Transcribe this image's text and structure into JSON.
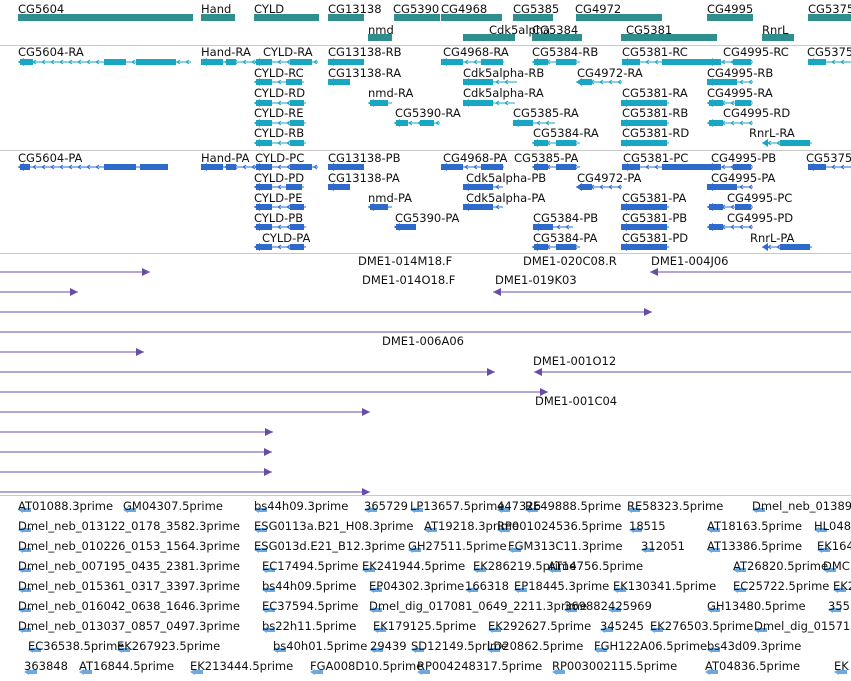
{
  "genes": [
    {
      "label": "CG5604"
    },
    {
      "label": "Hand"
    },
    {
      "label": "CYLD"
    },
    {
      "label": "CG13138"
    },
    {
      "label": "CG5390"
    },
    {
      "label": "CG4968"
    },
    {
      "label": "CG5385"
    },
    {
      "label": "CG4972"
    },
    {
      "label": "CG4995"
    },
    {
      "label": "CG5375"
    },
    {
      "label": "nmd"
    },
    {
      "label": "Cdk5alpha"
    },
    {
      "label": "CG5384"
    },
    {
      "label": "CG5381"
    },
    {
      "label": "RnrL"
    }
  ],
  "transcripts": [
    {
      "label": "CG5604-RA"
    },
    {
      "label": "Hand-RA"
    },
    {
      "label": "CYLD-RA"
    },
    {
      "label": "CG13138-RB"
    },
    {
      "label": "CG4968-RA"
    },
    {
      "label": "CG5384-RB"
    },
    {
      "label": "CG5381-RC"
    },
    {
      "label": "CG4995-RC"
    },
    {
      "label": "CG5375"
    },
    {
      "label": "CYLD-RC"
    },
    {
      "label": "CG13138-RA"
    },
    {
      "label": "Cdk5alpha-RB"
    },
    {
      "label": "CG4972-RA"
    },
    {
      "label": "CG4995-RB"
    },
    {
      "label": "CYLD-RD"
    },
    {
      "label": "nmd-RA"
    },
    {
      "label": "Cdk5alpha-RA"
    },
    {
      "label": "CG5381-RA"
    },
    {
      "label": "CG4995-RA"
    },
    {
      "label": "CYLD-RE"
    },
    {
      "label": "CG5390-RA"
    },
    {
      "label": "CG5385-RA"
    },
    {
      "label": "CG5381-RB"
    },
    {
      "label": "CG4995-RD"
    },
    {
      "label": "CYLD-RB"
    },
    {
      "label": "CG5384-RA"
    },
    {
      "label": "CG5381-RD"
    },
    {
      "label": "RnrL-RA"
    }
  ],
  "proteins": [
    {
      "label": "CG5604-PA"
    },
    {
      "label": "Hand-PA"
    },
    {
      "label": "CYLD-PC"
    },
    {
      "label": "CG13138-PB"
    },
    {
      "label": "CG4968-PA"
    },
    {
      "label": "CG5385-PA"
    },
    {
      "label": "CG5381-PC"
    },
    {
      "label": "CG4995-PB"
    },
    {
      "label": "CG5375"
    },
    {
      "label": "CYLD-PD"
    },
    {
      "label": "CG13138-PA"
    },
    {
      "label": "Cdk5alpha-PB"
    },
    {
      "label": "CG4972-PA"
    },
    {
      "label": "CG4995-PA"
    },
    {
      "label": "CYLD-PE"
    },
    {
      "label": "nmd-PA"
    },
    {
      "label": "Cdk5alpha-PA"
    },
    {
      "label": "CG5381-PA"
    },
    {
      "label": "CG4995-PC"
    },
    {
      "label": "CYLD-PB"
    },
    {
      "label": "CG5390-PA"
    },
    {
      "label": "CG5384-PB"
    },
    {
      "label": "CG5381-PB"
    },
    {
      "label": "CG4995-PD"
    },
    {
      "label": "CYLD-PA"
    },
    {
      "label": "CG5384-PA"
    },
    {
      "label": "CG5381-PD"
    },
    {
      "label": "RnrL-PA"
    }
  ],
  "clones": [
    {
      "label": "DME1-014M18.F"
    },
    {
      "label": "DME1-020C08.R"
    },
    {
      "label": "DME1-004J06"
    },
    {
      "label": "DME1-014O18.F"
    },
    {
      "label": "DME1-019K03"
    },
    {
      "label": "DME1-006A06"
    },
    {
      "label": "DME1-001O12"
    },
    {
      "label": "DME1-001C04"
    }
  ],
  "ests": [
    {
      "label": "AT01088.3prime"
    },
    {
      "label": "GM04307.5prime"
    },
    {
      "label": "bs44h09.3prime"
    },
    {
      "label": "365729"
    },
    {
      "label": "LP13657.5prime"
    },
    {
      "label": "447326"
    },
    {
      "label": "RE49888.5prime"
    },
    {
      "label": "RE58323.5prime"
    },
    {
      "label": "Dmel_neb_01389"
    },
    {
      "label": "Dmel_neb_013122_0178_3582.3prime"
    },
    {
      "label": "ESG0113a.B21_H08.3prime"
    },
    {
      "label": "AT19218.3prime"
    },
    {
      "label": "RP001024536.5prime"
    },
    {
      "label": "18515"
    },
    {
      "label": "AT18163.5prime"
    },
    {
      "label": "HL048"
    },
    {
      "label": "Dmel_neb_010226_0153_1564.3prime"
    },
    {
      "label": "ESG013d.E21_B12.3prime"
    },
    {
      "label": "GH27511.5prime"
    },
    {
      "label": "FGM313C11.3prime"
    },
    {
      "label": "312051"
    },
    {
      "label": "AT13386.5prime"
    },
    {
      "label": "EK164"
    },
    {
      "label": "Dmel_neb_007195_0435_2381.3prime"
    },
    {
      "label": "EC17494.5prime"
    },
    {
      "label": "EK241944.5prime"
    },
    {
      "label": "EK286219.5prime"
    },
    {
      "label": "AT14756.5prime"
    },
    {
      "label": "AT26820.5prime"
    },
    {
      "label": "DMC"
    },
    {
      "label": "Dmel_neb_015361_0317_3397.3prime"
    },
    {
      "label": "bs44h09.5prime"
    },
    {
      "label": "EP04302.3prime"
    },
    {
      "label": "166318"
    },
    {
      "label": "EP18445.3prime"
    },
    {
      "label": "EK130341.5prime"
    },
    {
      "label": "EC25722.5prime"
    },
    {
      "label": "EK2"
    },
    {
      "label": "Dmel_neb_016042_0638_1646.3prime"
    },
    {
      "label": "EC37594.5prime"
    },
    {
      "label": "Dmel_dig_017081_0649_2211.3prime"
    },
    {
      "label": "369882"
    },
    {
      "label": "425969"
    },
    {
      "label": "GH13480.5prime"
    },
    {
      "label": "355"
    },
    {
      "label": "Dmel_neb_013037_0857_0497.3prime"
    },
    {
      "label": "bs22h11.5prime"
    },
    {
      "label": "EK179125.5prime"
    },
    {
      "label": "EK292627.5prime"
    },
    {
      "label": "345245"
    },
    {
      "label": "EK276503.5prime"
    },
    {
      "label": "Dmel_dig_01571"
    },
    {
      "label": "EC36538.5prime"
    },
    {
      "label": "EK267923.5prime"
    },
    {
      "label": "bs40h01.5prime"
    },
    {
      "label": "29439"
    },
    {
      "label": "SD12149.5prime"
    },
    {
      "label": "LD20862.5prime"
    },
    {
      "label": "FGH122A06.5prime"
    },
    {
      "label": "bs43d09.3prime"
    },
    {
      "label": "363848"
    },
    {
      "label": "AT16844.5prime"
    },
    {
      "label": "EK213444.5prime"
    },
    {
      "label": "FGA008D10.5prime"
    },
    {
      "label": "RP004248317.5prime"
    },
    {
      "label": "RP003002115.5prime"
    },
    {
      "label": "AT04836.5prime"
    },
    {
      "label": "EK"
    }
  ],
  "colors": {
    "gene": "#2f8f8f",
    "transcript": "#19a6c2",
    "protein": "#2e6acc",
    "clone": "#6a4ca8",
    "est": "#6fa8dc",
    "separator": "#c8c8c8"
  }
}
